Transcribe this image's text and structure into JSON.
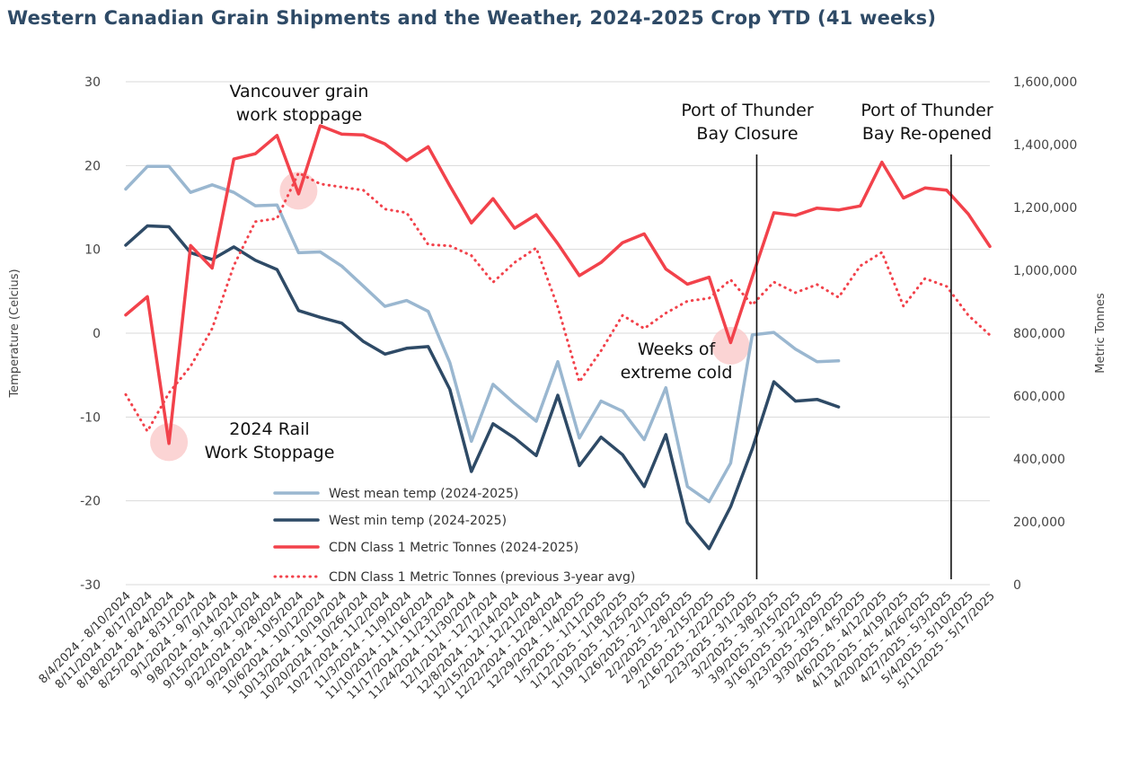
{
  "chart_data": {
    "type": "line",
    "title": "Western Canadian Grain Shipments and the Weather, 2024-2025 Crop YTD (41 weeks)",
    "ylabel_left": "Temperature (Celcius)",
    "ylabel_right": "Metric Tonnes",
    "ylim_left": [
      -30,
      30
    ],
    "ylim_right": [
      0,
      1600000
    ],
    "yticks_left": [
      "30",
      "20",
      "10",
      "0",
      "-10",
      "-20",
      "-30"
    ],
    "yticks_right": [
      "1,600,000",
      "1,400,000",
      "1,200,000",
      "1,000,000",
      "800,000",
      "600,000",
      "400,000",
      "200,000",
      "0"
    ],
    "grid": true,
    "x": [
      "8/4/2024 - 8/10/2024",
      "8/11/2024 - 8/17/2024",
      "8/18/2024 - 8/24/2024",
      "8/25/2024 - 8/31/2024",
      "9/1/2024 - 9/7/2024",
      "9/8/2024 - 9/14/2024",
      "9/15/2024 - 9/21/2024",
      "9/22/2024 - 9/28/2024",
      "9/29/2024 - 10/5/2024",
      "10/6/2024 - 10/12/2024",
      "10/13/2024 - 10/19/2024",
      "10/20/2024 - 10/26/2024",
      "10/27/2024 - 11/2/2024",
      "11/3/2024 - 11/9/2024",
      "11/10/2024 - 11/16/2024",
      "11/17/2024 - 11/23/2024",
      "11/24/2024 - 11/30/2024",
      "12/1/2024 - 12/7/2024",
      "12/8/2024 - 12/14/2024",
      "12/15/2024 - 12/21/2024",
      "12/22/2024 - 12/28/2024",
      "12/29/2024 - 1/4/2025",
      "1/5/2025 - 1/11/2025",
      "1/12/2025 - 1/18/2025",
      "1/19/2025 - 1/25/2025",
      "1/26/2025 - 2/1/2025",
      "2/2/2025 - 2/8/2025",
      "2/9/2025 - 2/15/2025",
      "2/16/2025 - 2/22/2025",
      "2/23/2025 - 3/1/2025",
      "3/2/2025 - 3/8/2025",
      "3/9/2025 - 3/15/2025",
      "3/16/2025 - 3/22/2025",
      "3/23/2025 - 3/29/2025",
      "3/30/2025 - 4/5/2025",
      "4/6/2025 - 4/12/2025",
      "4/13/2025 - 4/19/2025",
      "4/20/2025 - 4/26/2025",
      "4/27/2025 - 5/3/2025",
      "5/4/2025 - 5/10/2025",
      "5/11/2025 - 5/17/2025"
    ],
    "series": [
      {
        "name": "West mean temp (2024-2025)",
        "axis": "left",
        "color": "#9ab7d0",
        "style": "solid",
        "values": [
          17.2,
          19.9,
          19.9,
          16.8,
          17.7,
          16.8,
          15.2,
          15.3,
          9.6,
          9.7,
          8.0,
          5.6,
          3.2,
          3.9,
          2.6,
          -3.5,
          -12.9,
          -6.1,
          -8.4,
          -10.5,
          -3.4,
          -12.5,
          -8.1,
          -9.3,
          -12.7,
          -6.5,
          -18.3,
          -20.1,
          -15.5,
          -0.2,
          0.1,
          -1.9,
          -3.4,
          -3.3,
          null,
          null,
          null,
          null,
          null,
          null,
          null
        ]
      },
      {
        "name": "West min temp (2024-2025)",
        "axis": "left",
        "color": "#2e4a66",
        "style": "solid",
        "values": [
          10.5,
          12.8,
          12.7,
          9.6,
          8.8,
          10.3,
          8.7,
          7.6,
          2.7,
          1.9,
          1.2,
          -1.0,
          -2.5,
          -1.8,
          -1.6,
          -6.7,
          -16.5,
          -10.8,
          -12.5,
          -14.6,
          -7.4,
          -15.8,
          -12.4,
          -14.5,
          -18.3,
          -12.1,
          -22.6,
          -25.7,
          -20.7,
          -13.8,
          -5.8,
          -8.1,
          -7.9,
          -8.8,
          null,
          null,
          null,
          null,
          null,
          null,
          null
        ]
      },
      {
        "name": "CDN Class 1 Metric Tonnes (2024-2025)",
        "axis": "right",
        "color": "#f2424b",
        "style": "solid",
        "values": [
          858000,
          916000,
          449000,
          1079000,
          1007000,
          1354000,
          1371000,
          1429000,
          1243000,
          1460000,
          1433000,
          1431000,
          1402000,
          1349000,
          1393000,
          1269000,
          1151000,
          1228000,
          1134000,
          1177000,
          1085000,
          983000,
          1025000,
          1088000,
          1116000,
          1004000,
          956000,
          978000,
          770000,
          979000,
          1183000,
          1175000,
          1198000,
          1192000,
          1205000,
          1344000,
          1230000,
          1262000,
          1255000,
          1179000,
          1076000
        ]
      },
      {
        "name": "CDN Class 1 Metric Tonnes (previous 3-year avg)",
        "axis": "right",
        "color": "#f2424b",
        "style": "dotted",
        "values": [
          605000,
          488000,
          610000,
          695000,
          815000,
          1015000,
          1155000,
          1165000,
          1310000,
          1275000,
          1265000,
          1255000,
          1195000,
          1183000,
          1082000,
          1078000,
          1047000,
          962000,
          1025000,
          1071000,
          883000,
          645000,
          744000,
          857000,
          815000,
          864000,
          902000,
          911000,
          970000,
          890000,
          963000,
          929000,
          955000,
          914000,
          1014000,
          1057000,
          886000,
          974000,
          949000,
          857000,
          794000
        ]
      }
    ],
    "legend": {
      "placement": "lower-left",
      "entries": [
        "West mean temp (2024-2025)",
        "West min temp (2024-2025)",
        "CDN Class 1 Metric Tonnes (2024-2025)",
        "CDN Class 1 Metric Tonnes (previous 3-year avg)"
      ]
    },
    "annotations": [
      {
        "id": "vancouver",
        "lines": [
          "Vancouver grain",
          "work stoppage"
        ],
        "x_index": 8,
        "circle_axis": "left",
        "circle_value": 17
      },
      {
        "id": "rail",
        "lines": [
          "2024 Rail",
          "Work Stoppage"
        ],
        "x_index": 2,
        "circle_axis": "left",
        "circle_value": -13
      },
      {
        "id": "cold",
        "lines": [
          "Weeks of",
          "extreme cold"
        ],
        "x_index": 28,
        "circle_axis": "left",
        "circle_value": -1.5
      },
      {
        "id": "thunder-close",
        "lines": [
          "Port of Thunder",
          "Bay Closure"
        ],
        "x_index": 29,
        "vline": true
      },
      {
        "id": "thunder-open",
        "lines": [
          "Port of Thunder",
          "Bay Re-opened"
        ],
        "x_index": 38,
        "vline": true
      }
    ]
  }
}
